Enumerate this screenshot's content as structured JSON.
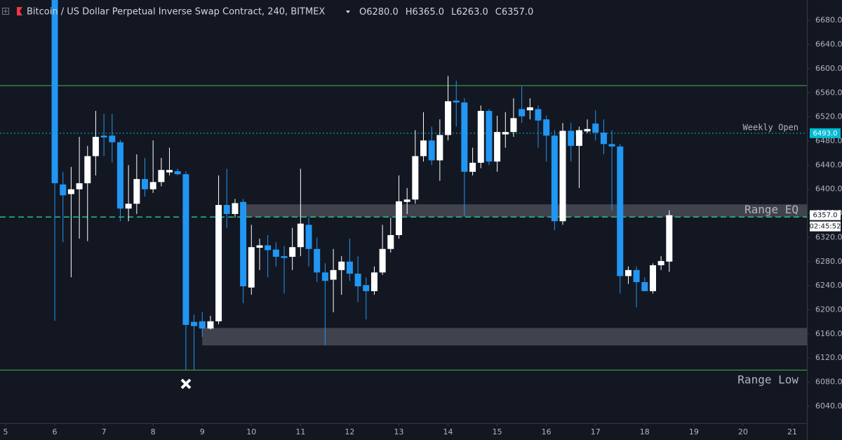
{
  "chart_data": {
    "type": "candlestick",
    "symbol": "Bitcoin / US Dollar Perpetual Inverse Swap Contract, 240, BITMEX",
    "ohlc_labels": [
      {
        "key": "O",
        "value": "6280.0"
      },
      {
        "key": "H",
        "value": "6365.0"
      },
      {
        "key": "L",
        "value": "6263.0"
      },
      {
        "key": "C",
        "value": "6357.0"
      }
    ],
    "up_color": "#ffffff",
    "down_color": "#2196f3",
    "x": [
      6,
      6.167,
      6.333,
      6.5,
      6.667,
      6.833,
      7,
      7.167,
      7.333,
      7.5,
      7.667,
      7.833,
      8,
      8.167,
      8.333,
      8.5,
      8.667,
      8.833,
      9,
      9.167,
      9.333,
      9.5,
      9.667,
      9.833,
      10,
      10.167,
      10.333,
      10.5,
      10.667,
      10.833,
      11,
      11.167,
      11.333,
      11.5,
      11.667,
      11.833,
      12,
      12.167,
      12.333,
      12.5,
      12.667,
      12.833,
      13,
      13.167,
      13.333,
      13.5,
      13.667,
      13.833,
      14,
      14.167,
      14.333,
      14.5,
      14.667,
      14.833,
      15,
      15.167,
      15.333,
      15.5,
      15.667,
      15.833,
      16,
      16.167,
      16.333,
      16.5,
      16.667,
      16.833,
      17,
      17.167,
      17.333,
      17.5,
      17.667,
      17.833,
      18,
      18.167,
      18.333,
      18.5
    ],
    "open": [
      6714,
      6408,
      6392,
      6400,
      6410,
      6455,
      6489,
      6489,
      6478,
      6368,
      6376,
      6417,
      6400,
      6412,
      6428,
      6430,
      6425,
      6180,
      6181,
      6169,
      6181,
      6374,
      6359,
      6379,
      6237,
      6303,
      6307,
      6300,
      6289,
      6288,
      6304,
      6341,
      6301,
      6262,
      6250,
      6266,
      6280,
      6260,
      6241,
      6231,
      6262,
      6301,
      6324,
      6379,
      6383,
      6455,
      6481,
      6448,
      6490,
      6547,
      6544,
      6429,
      6444,
      6530,
      6446,
      6491,
      6495,
      6533,
      6531,
      6533,
      6516,
      6489,
      6347,
      6497,
      6472,
      6496,
      6509,
      6494,
      6475,
      6471,
      6256,
      6266,
      6246,
      6231,
      6274,
      6280
    ],
    "high": [
      6714,
      6429,
      6437,
      6487,
      6472,
      6530,
      6525,
      6525,
      6482,
      6440,
      6458,
      6452,
      6481,
      6452,
      6469,
      6434,
      6430,
      6192,
      6196,
      6190,
      6423,
      6434,
      6384,
      6384,
      6341,
      6318,
      6324,
      6312,
      6306,
      6336,
      6434,
      6353,
      6320,
      6277,
      6301,
      6289,
      6318,
      6289,
      6254,
      6272,
      6341,
      6353,
      6423,
      6402,
      6498,
      6528,
      6504,
      6516,
      6588,
      6580,
      6551,
      6469,
      6539,
      6533,
      6522,
      6528,
      6551,
      6571,
      6551,
      6539,
      6522,
      6498,
      6510,
      6510,
      6504,
      6516,
      6531,
      6516,
      6498,
      6475,
      6272,
      6272,
      6254,
      6277,
      6289,
      6365
    ],
    "low": [
      6182,
      6312,
      6254,
      6318,
      6314,
      6423,
      6455,
      6444,
      6347,
      6347,
      6359,
      6388,
      6394,
      6405,
      6423,
      6423,
      6100,
      6100,
      6155,
      6167,
      6176,
      6336,
      6353,
      6211,
      6225,
      6266,
      6254,
      6272,
      6227,
      6266,
      6289,
      6272,
      6246,
      6141,
      6196,
      6225,
      6248,
      6213,
      6184,
      6225,
      6258,
      6295,
      6318,
      6359,
      6376,
      6446,
      6440,
      6414,
      6481,
      6504,
      6355,
      6423,
      6435,
      6440,
      6429,
      6469,
      6487,
      6510,
      6516,
      6469,
      6446,
      6332,
      6341,
      6446,
      6402,
      6493,
      6481,
      6458,
      6365,
      6227,
      6243,
      6204,
      6231,
      6227,
      6266,
      6263
    ],
    "close": [
      6410,
      6390,
      6400,
      6410,
      6455,
      6487,
      6486,
      6478,
      6368,
      6376,
      6417,
      6400,
      6412,
      6432,
      6432,
      6425,
      6175,
      6173,
      6169,
      6181,
      6374,
      6359,
      6377,
      6239,
      6304,
      6307,
      6299,
      6288,
      6286,
      6304,
      6343,
      6301,
      6262,
      6248,
      6266,
      6280,
      6260,
      6239,
      6231,
      6262,
      6301,
      6324,
      6380,
      6383,
      6455,
      6481,
      6448,
      6490,
      6546,
      6544,
      6429,
      6444,
      6530,
      6446,
      6495,
      6495,
      6518,
      6521,
      6536,
      6514,
      6489,
      6347,
      6497,
      6472,
      6498,
      6500,
      6494,
      6475,
      6471,
      6256,
      6266,
      6246,
      6231,
      6274,
      6281,
      6357
    ],
    "xlim": [
      4.886,
      21.3
    ],
    "xticks": [
      5,
      6,
      7,
      8,
      9,
      10,
      11,
      12,
      13,
      14,
      15,
      16,
      17,
      18,
      19,
      20,
      21
    ],
    "ylim": [
      6012,
      6714
    ],
    "yticks": [
      {
        "value": 6040,
        "label": "6040.0"
      },
      {
        "value": 6080,
        "label": "6080.0"
      },
      {
        "value": 6120,
        "label": "6120.0"
      },
      {
        "value": 6160,
        "label": "6160.0"
      },
      {
        "value": 6200,
        "label": "6200.0"
      },
      {
        "value": 6240,
        "label": "6240.0"
      },
      {
        "value": 6280,
        "label": "6280.0"
      },
      {
        "value": 6320,
        "label": "6320.0"
      },
      {
        "value": 6360,
        "label": "6360.0"
      },
      {
        "value": 6400,
        "label": "6400.0"
      },
      {
        "value": 6440,
        "label": "6440.0"
      },
      {
        "value": 6480,
        "label": "6480.0"
      },
      {
        "value": 6520,
        "label": "6520.0"
      },
      {
        "value": 6560,
        "label": "6560.0"
      },
      {
        "value": 6600,
        "label": "6600.0"
      },
      {
        "value": 6640,
        "label": "6640.0"
      },
      {
        "value": 6680,
        "label": "6680.0"
      }
    ],
    "zones": [
      {
        "from": 6354,
        "to": 6375,
        "start": 9.833
      },
      {
        "from": 6141,
        "to": 6170,
        "start": 9.0
      }
    ],
    "zone_color": "rgba(120,123,134,0.45)",
    "lines": [
      {
        "value": 6572,
        "color": "#4caf50",
        "style": "solid"
      },
      {
        "value": 6100,
        "color": "#4caf50",
        "style": "solid"
      },
      {
        "value": 6354,
        "color": "#26c281",
        "style": "dashed"
      },
      {
        "value": 6493,
        "color": "#00bcd4",
        "style": "dotted",
        "tag": "6493.0"
      }
    ],
    "annotations": [
      {
        "text": "Range EQ",
        "value": 6354,
        "position": "above",
        "size": 16
      },
      {
        "text": "Range Low",
        "value": 6100,
        "position": "below",
        "size": 16
      },
      {
        "text": "Weekly Open",
        "value": 6493,
        "position": "above",
        "size": 12
      }
    ],
    "last_price_label": "6357.0",
    "countdown": "02:45:52"
  }
}
